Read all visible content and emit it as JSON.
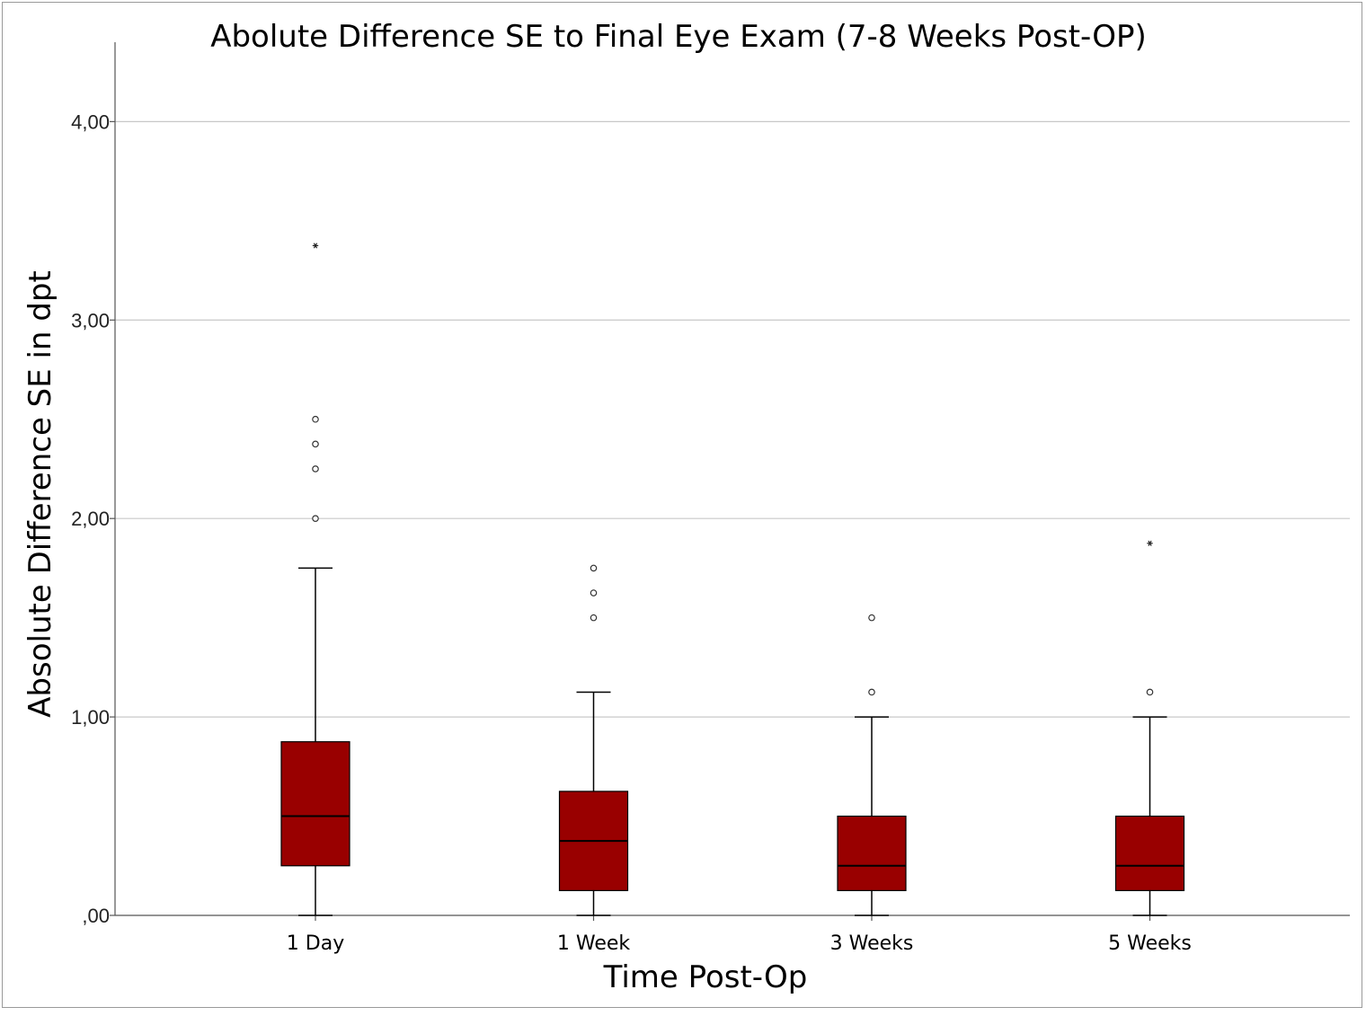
{
  "chart_data": {
    "type": "box",
    "title": "Abolute Difference SE to Final Eye Exam (7-8 Weeks Post-OP)",
    "xlabel": "Time Post-Op",
    "ylabel": "Absolute Difference SE in dpt",
    "ylim": [
      0,
      4.4
    ],
    "yticks": [
      0,
      1,
      2,
      3,
      4
    ],
    "ytick_labels": [
      ",00",
      "1,00",
      "2,00",
      "3,00",
      "4,00"
    ],
    "grid": true,
    "box_color": "#990000",
    "categories": [
      "1 Day",
      "1 Week",
      "3 Weeks",
      "5 Weeks"
    ],
    "boxes": [
      {
        "category": "1 Day",
        "min": 0,
        "q1": 0.25,
        "median": 0.5,
        "q3": 0.875,
        "max": 1.75,
        "outliers": [
          2.0,
          2.25,
          2.375,
          2.5
        ],
        "extremes": [
          3.375
        ]
      },
      {
        "category": "1 Week",
        "min": 0,
        "q1": 0.125,
        "median": 0.375,
        "q3": 0.625,
        "max": 1.125,
        "outliers": [
          1.5,
          1.625,
          1.75
        ],
        "extremes": []
      },
      {
        "category": "3 Weeks",
        "min": 0,
        "q1": 0.125,
        "median": 0.25,
        "q3": 0.5,
        "max": 1.0,
        "outliers": [
          1.125,
          1.5
        ],
        "extremes": []
      },
      {
        "category": "5 Weeks",
        "min": 0,
        "q1": 0.125,
        "median": 0.25,
        "q3": 0.5,
        "max": 1.0,
        "outliers": [
          1.125
        ],
        "extremes": [
          1.875
        ]
      }
    ]
  }
}
